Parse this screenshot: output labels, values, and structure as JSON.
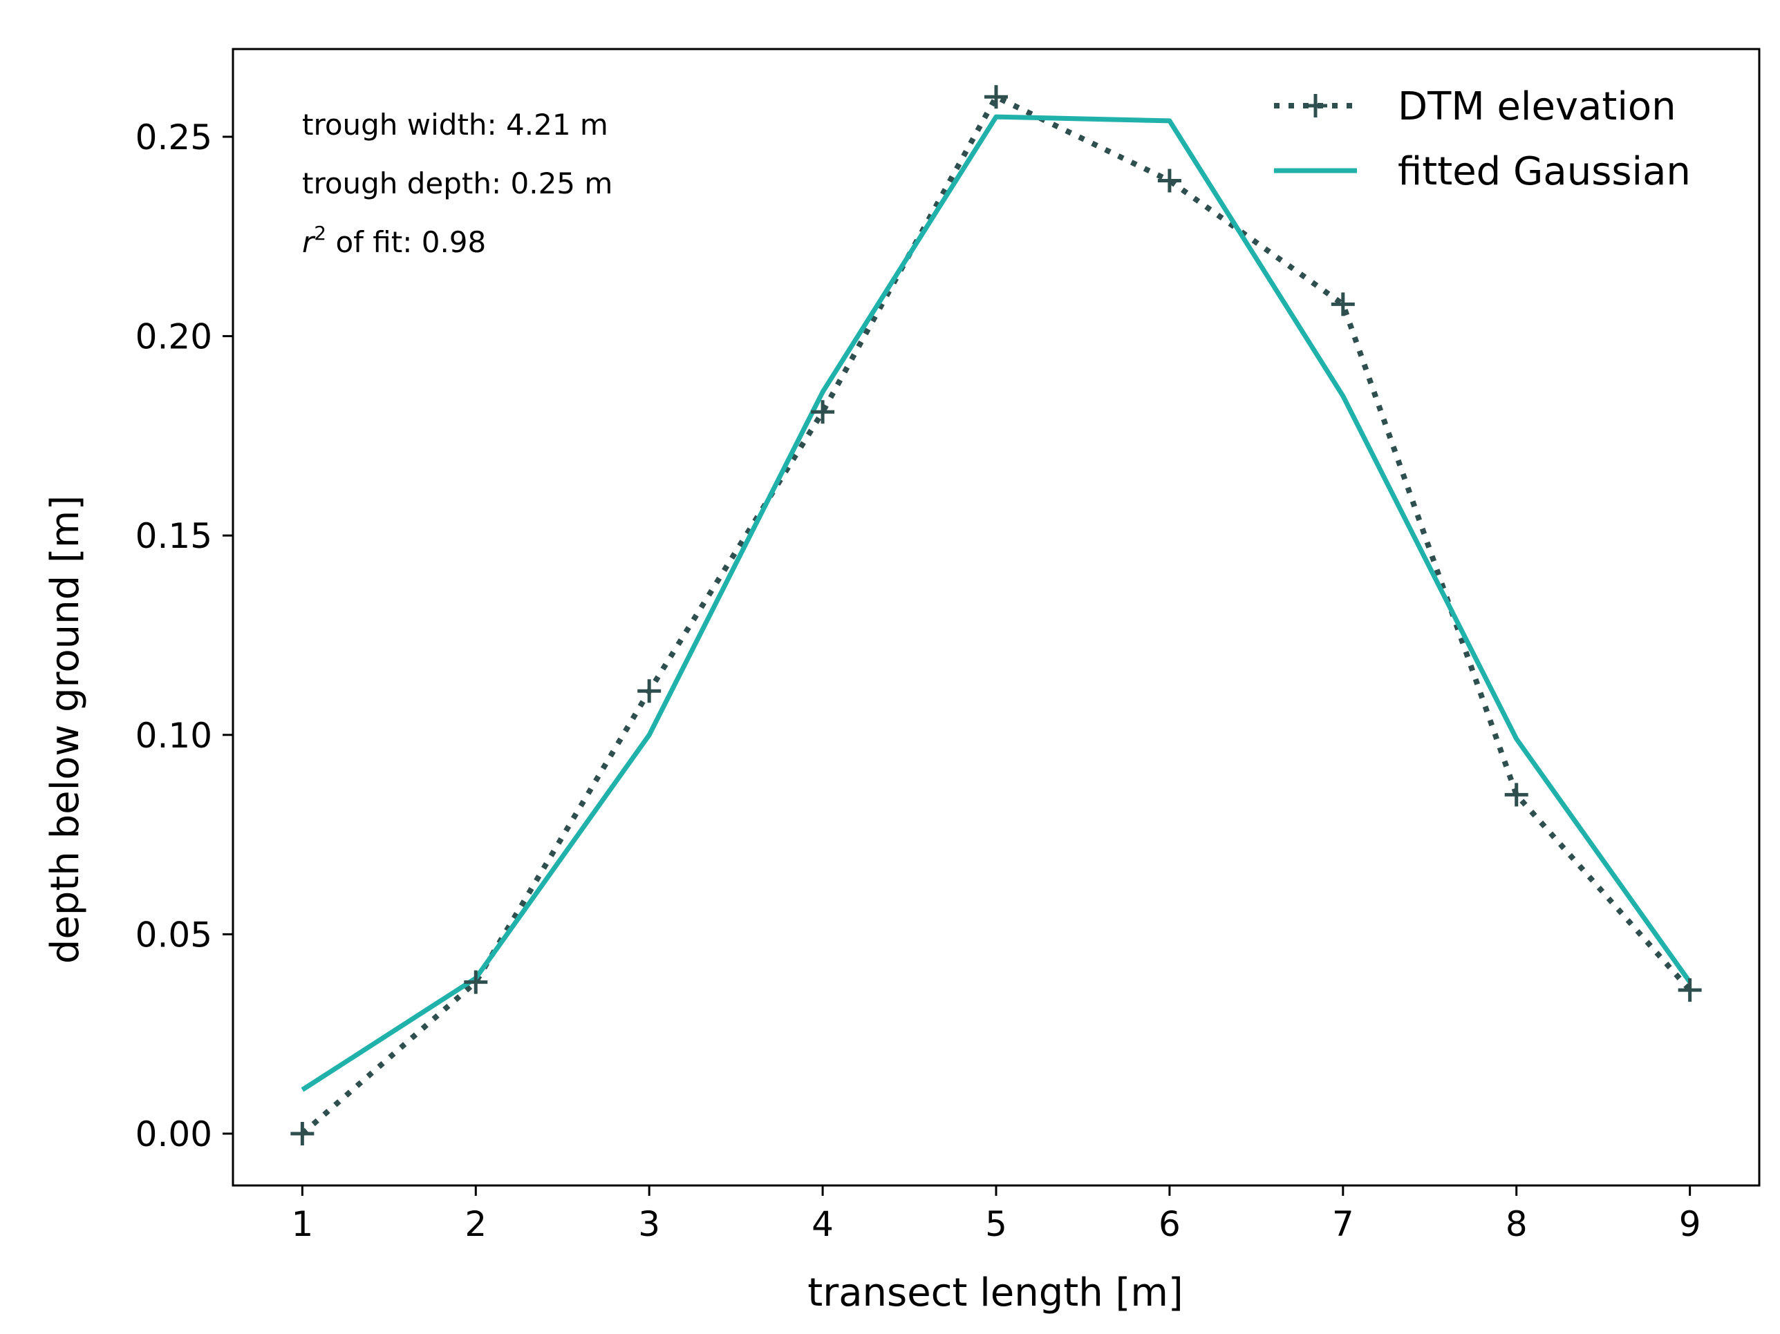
{
  "chart_data": {
    "type": "line",
    "title": "",
    "xlabel": "transect length [m]",
    "ylabel": "depth below ground [m]",
    "xlim": [
      0.6,
      9.4
    ],
    "ylim": [
      -0.013,
      0.272
    ],
    "grid": false,
    "legend_position": "top-right",
    "x_ticks": [
      1,
      2,
      3,
      4,
      5,
      6,
      7,
      8,
      9
    ],
    "y_ticks": [
      "0.00",
      "0.05",
      "0.10",
      "0.15",
      "0.20",
      "0.25"
    ],
    "x": [
      1,
      2,
      3,
      4,
      5,
      6,
      7,
      8,
      9
    ],
    "series": [
      {
        "name": "DTM elevation",
        "style": "dotted-plus",
        "color": "#2f4f4f",
        "values": [
          0.0,
          0.038,
          0.111,
          0.181,
          0.26,
          0.239,
          0.208,
          0.085,
          0.036
        ]
      },
      {
        "name": "fitted Gaussian",
        "style": "solid",
        "color": "#20b2aa",
        "values": [
          0.011,
          0.039,
          0.1,
          0.186,
          0.255,
          0.254,
          0.185,
          0.099,
          0.038
        ]
      }
    ],
    "annotations": {
      "width": "trough width: 4.21 m",
      "depth": "trough depth: 0.25 m",
      "r2_symbol": "r",
      "r2_exp": "2",
      "r2_rest": " of fit: 0.98"
    }
  }
}
